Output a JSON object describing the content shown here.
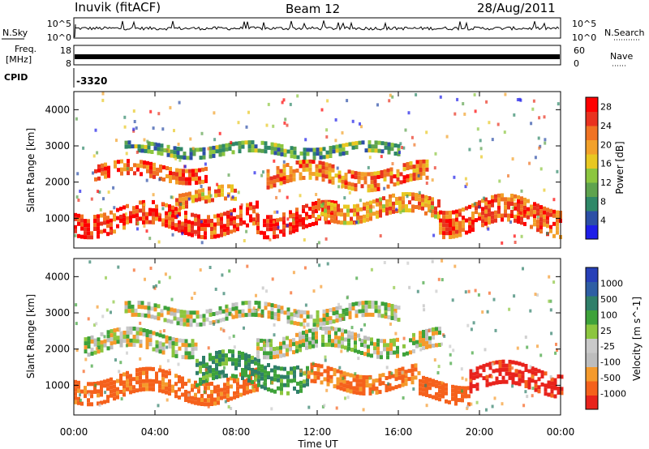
{
  "header": {
    "station": "Inuvik (fitACF)",
    "beam": "Beam 12",
    "date": "28/Aug/2011"
  },
  "top_panels": {
    "nsky": {
      "label": "N.Sky",
      "left_ticks": [
        "10^5",
        "10^0"
      ],
      "right_ticks": [
        "10^5",
        "10^0"
      ],
      "right_label": "N.Search"
    },
    "freq": {
      "label_line1": "Freq.",
      "label_line2": "[MHz]",
      "left_ticks": [
        "18",
        "8"
      ],
      "right_ticks": [
        "60",
        "0"
      ],
      "right_label": "Nave"
    },
    "cpid": {
      "label": "CPID",
      "value": "-3320"
    }
  },
  "colors": {
    "power_scale": [
      "#1e1ee8",
      "#2c4fa6",
      "#2f8868",
      "#5ea34e",
      "#8cc63f",
      "#e8c822",
      "#f2a12a",
      "#f07323",
      "#e9321f",
      "#ff0000"
    ],
    "velocity_scale": [
      "#e8231c",
      "#f5611c",
      "#f59a2c",
      "#bdbdbd",
      "#c9c9c9",
      "#8cc63f",
      "#3ea23a",
      "#2f7f69",
      "#2e5ea4",
      "#2740b8"
    ],
    "frame": "#000000",
    "ground_scatter": "#c0c0c0"
  },
  "chart_data": [
    {
      "type": "heatmap",
      "panel": "power",
      "xlabel": "Time UT",
      "ylabel": "Slant Range [km]",
      "colorbar_label": "Power [dB]",
      "x_ticks": [
        "00:00",
        "04:00",
        "08:00",
        "12:00",
        "16:00",
        "20:00",
        "00:00"
      ],
      "y_ticks": [
        1000,
        2000,
        3000,
        4000
      ],
      "ylim": [
        180,
        4500
      ],
      "colorbar_ticks": [
        4,
        8,
        12,
        16,
        20,
        24,
        28
      ],
      "colorbar_range": [
        0,
        30
      ],
      "bands": [
        {
          "t_start": 0.0,
          "t_end": 9.0,
          "range_center": 1000,
          "range_width": 600,
          "level": 26
        },
        {
          "t_start": 1.0,
          "t_end": 6.5,
          "range_center": 2300,
          "range_width": 400,
          "level": 24
        },
        {
          "t_start": 5.0,
          "t_end": 8.0,
          "range_center": 1600,
          "range_width": 400,
          "level": 20
        },
        {
          "t_start": 9.0,
          "t_end": 13.0,
          "range_center": 1000,
          "range_width": 600,
          "level": 27
        },
        {
          "t_start": 9.5,
          "t_end": 17.5,
          "range_center": 2200,
          "range_width": 500,
          "level": 22
        },
        {
          "t_start": 12.0,
          "t_end": 18.0,
          "range_center": 1300,
          "range_width": 500,
          "level": 20
        },
        {
          "t_start": 18.0,
          "t_end": 24.0,
          "range_center": 1100,
          "range_width": 700,
          "level": 24
        },
        {
          "t_start": 2.5,
          "t_end": 16.0,
          "range_center": 2900,
          "range_width": 300,
          "level": 10
        }
      ]
    },
    {
      "type": "heatmap",
      "panel": "velocity",
      "xlabel": "Time UT",
      "ylabel": "Slant Range [km]",
      "colorbar_label": "Velocity [m s^-1]",
      "x_ticks": [
        "00:00",
        "04:00",
        "08:00",
        "12:00",
        "16:00",
        "20:00",
        "00:00"
      ],
      "y_ticks": [
        1000,
        2000,
        3000,
        4000
      ],
      "ylim": [
        180,
        4500
      ],
      "colorbar_ticks": [
        "1000",
        "500",
        "100",
        "25",
        "-25",
        "-100",
        "-500",
        "-1000"
      ],
      "bands": [
        {
          "t_start": 0.0,
          "t_end": 9.0,
          "range_center": 1000,
          "range_width": 600,
          "velocity": -300
        },
        {
          "t_start": 0.5,
          "t_end": 6.0,
          "range_center": 2200,
          "range_width": 500,
          "velocity": 0
        },
        {
          "t_start": 6.0,
          "t_end": 11.5,
          "range_center": 1400,
          "range_width": 700,
          "velocity": 200
        },
        {
          "t_start": 9.0,
          "t_end": 18.0,
          "range_center": 2200,
          "range_width": 500,
          "velocity": 0
        },
        {
          "t_start": 11.5,
          "t_end": 17.0,
          "range_center": 1200,
          "range_width": 500,
          "velocity": -250
        },
        {
          "t_start": 17.0,
          "t_end": 19.5,
          "range_center": 900,
          "range_width": 500,
          "velocity": -400
        },
        {
          "t_start": 19.5,
          "t_end": 24.0,
          "range_center": 1200,
          "range_width": 600,
          "velocity": -700
        },
        {
          "t_start": 2.5,
          "t_end": 16.0,
          "range_center": 3000,
          "range_width": 400,
          "velocity": 0
        }
      ]
    }
  ]
}
